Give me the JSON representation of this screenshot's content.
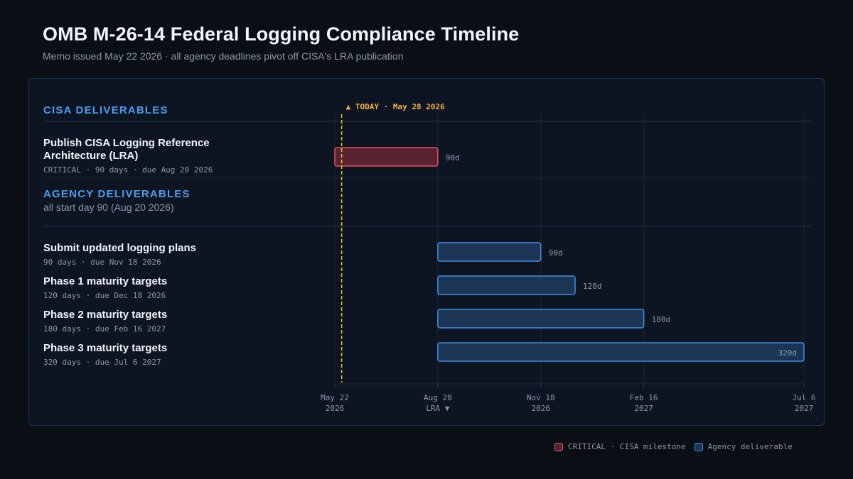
{
  "header": {
    "title": "OMB M-26-14 Federal Logging Compliance Timeline",
    "subtitle": "Memo issued May 22 2026 · all agency deadlines pivot off CISA's LRA publication"
  },
  "colors": {
    "critical_fill": "#5a2330",
    "critical_stroke": "#e0525c",
    "agency_fill": "#1c3555",
    "agency_stroke": "#3f8fe0",
    "section_heading": "#4a9df0",
    "today": "#f0b340",
    "grid": "#1b2636",
    "muted": "#8a97aa"
  },
  "chart_data": {
    "type": "gantt",
    "x_axis": {
      "unit": "days since memo issued",
      "range": [
        0,
        410
      ],
      "ticks": [
        {
          "value": 0,
          "label": "May 22",
          "sub": "2026"
        },
        {
          "value": 90,
          "label": "Aug 20",
          "sub": "LRA ▼"
        },
        {
          "value": 180,
          "label": "Nov 18",
          "sub": "2026"
        },
        {
          "value": 270,
          "label": "Feb 16",
          "sub": "2027"
        },
        {
          "value": 410,
          "label": "Jul 6",
          "sub": "2027"
        }
      ]
    },
    "today": {
      "value": 6,
      "label": "▲ TODAY · May 28 2026"
    },
    "sections": [
      {
        "heading": "CISA DELIVERABLES",
        "subheading": "",
        "tasks": [
          {
            "name": "Publish CISA Logging Reference Architecture (LRA)",
            "name_lines": [
              "Publish CISA Logging Reference",
              "Architecture (LRA)"
            ],
            "meta": "CRITICAL · 90 days · due Aug 20 2026",
            "start": 0,
            "end": 90,
            "duration_label": "90d",
            "kind": "critical"
          }
        ]
      },
      {
        "heading": "AGENCY DELIVERABLES",
        "subheading": "all start day 90 (Aug 20 2026)",
        "tasks": [
          {
            "name": "Submit updated logging plans",
            "name_lines": [
              "Submit updated logging plans"
            ],
            "meta": "90 days · due Nov 18 2026",
            "start": 90,
            "end": 180,
            "duration_label": "90d",
            "kind": "agency"
          },
          {
            "name": "Phase 1 maturity targets",
            "name_lines": [
              "Phase 1 maturity targets"
            ],
            "meta": "120 days · due Dec 18 2026",
            "start": 90,
            "end": 210,
            "duration_label": "120d",
            "kind": "agency"
          },
          {
            "name": "Phase 2 maturity targets",
            "name_lines": [
              "Phase 2 maturity targets"
            ],
            "meta": "180 days · due Feb 16 2027",
            "start": 90,
            "end": 270,
            "duration_label": "180d",
            "kind": "agency"
          },
          {
            "name": "Phase 3 maturity targets",
            "name_lines": [
              "Phase 3 maturity targets"
            ],
            "meta": "320 days · due Jul 6 2027",
            "start": 90,
            "end": 410,
            "duration_label": "320d",
            "kind": "agency",
            "label_inside": true
          }
        ]
      }
    ]
  },
  "legend": {
    "critical_label": "CRITICAL · CISA milestone",
    "agency_label": "Agency deliverable"
  }
}
